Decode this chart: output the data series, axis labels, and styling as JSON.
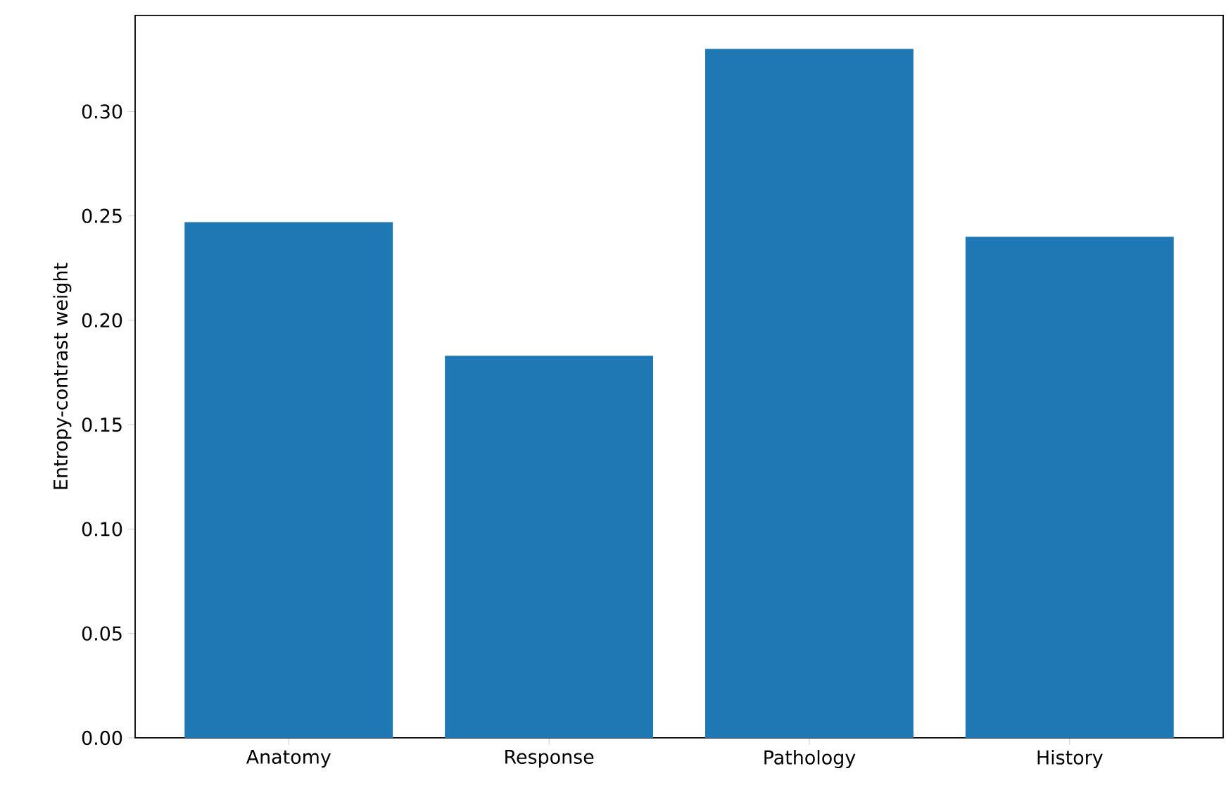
{
  "chart_data": {
    "type": "bar",
    "ylabel": "Entropy-contrast weight",
    "categories": [
      "Anatomy",
      "Response",
      "Pathology",
      "History"
    ],
    "values": [
      0.247,
      0.183,
      0.33,
      0.24
    ],
    "color": "#1f77b4",
    "ylim": [
      0,
      0.346
    ],
    "yticks": [
      {
        "value": 0,
        "label": "0.00"
      },
      {
        "value": 0.05,
        "label": "0.05"
      },
      {
        "value": 0.1,
        "label": "0.10"
      },
      {
        "value": 0.15,
        "label": "0.15"
      },
      {
        "value": 0.2,
        "label": "0.20"
      },
      {
        "value": 0.25,
        "label": "0.25"
      },
      {
        "value": 0.3,
        "label": "0.30"
      }
    ],
    "grid": false
  }
}
